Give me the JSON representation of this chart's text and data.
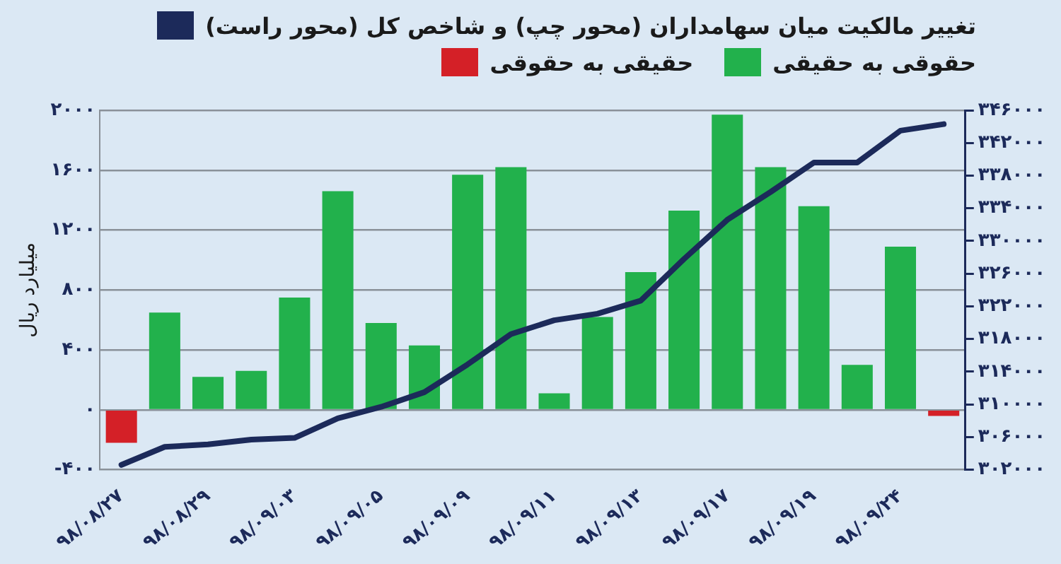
{
  "chart_data": {
    "type": "bar",
    "categories": [
      "۹۸/۰۸/۲۷",
      null,
      "۹۸/۰۸/۲۹",
      null,
      "۹۸/۰۹/۰۳",
      null,
      "۹۸/۰۹/۰۵",
      null,
      "۹۸/۰۹/۰۹",
      null,
      "۹۸/۰۹/۱۱",
      null,
      "۹۸/۰۹/۱۳",
      null,
      "۹۸/۰۹/۱۷",
      null,
      "۹۸/۰۹/۱۹",
      null,
      "۹۸/۰۹/۲۴",
      null
    ],
    "series": [
      {
        "name": "تغییر مالکیت میان سهامداران (محور چپ) و شاخص کل (محور راست)",
        "type": "line",
        "axis": "y2",
        "color": "#1c2a5a",
        "values": [
          302600,
          304800,
          305100,
          305700,
          305900,
          308300,
          309700,
          311500,
          314900,
          318600,
          320300,
          321100,
          322700,
          327800,
          332600,
          336000,
          339600,
          339600,
          343500,
          344300
        ]
      },
      {
        "name": "حقوقی به حقیقی",
        "color": "#22b14c",
        "values": [
          null,
          650,
          220,
          260,
          750,
          1460,
          580,
          430,
          1570,
          1620,
          110,
          620,
          920,
          1330,
          1970,
          1620,
          1360,
          300,
          1090,
          null
        ]
      },
      {
        "name": "حقیقی به حقوقی",
        "color": "#d42027",
        "values": [
          -220,
          null,
          null,
          null,
          null,
          null,
          null,
          null,
          null,
          null,
          null,
          null,
          null,
          null,
          null,
          null,
          null,
          null,
          null,
          -40
        ]
      }
    ],
    "ylabel": "میلیارد ریال",
    "ylim": [
      -400,
      2000
    ],
    "yticks": [
      {
        "value": -400,
        "label": "-۴۰۰"
      },
      {
        "value": 0,
        "label": "۰"
      },
      {
        "value": 400,
        "label": "۴۰۰"
      },
      {
        "value": 800,
        "label": "۸۰۰"
      },
      {
        "value": 1200,
        "label": "۱۲۰۰"
      },
      {
        "value": 1600,
        "label": "۱۶۰۰"
      },
      {
        "value": 2000,
        "label": "۲۰۰۰"
      }
    ],
    "y2lim": [
      302000,
      346000
    ],
    "y2ticks": [
      {
        "value": 302000,
        "label": "۳۰۲۰۰۰"
      },
      {
        "value": 306000,
        "label": "۳۰۶۰۰۰"
      },
      {
        "value": 310000,
        "label": "۳۱۰۰۰۰"
      },
      {
        "value": 314000,
        "label": "۳۱۴۰۰۰"
      },
      {
        "value": 318000,
        "label": "۳۱۸۰۰۰"
      },
      {
        "value": 322000,
        "label": "۳۲۲۰۰۰"
      },
      {
        "value": 326000,
        "label": "۳۲۶۰۰۰"
      },
      {
        "value": 330000,
        "label": "۳۳۰۰۰۰"
      },
      {
        "value": 334000,
        "label": "۳۳۴۰۰۰"
      },
      {
        "value": 338000,
        "label": "۳۳۸۰۰۰"
      },
      {
        "value": 342000,
        "label": "۳۴۲۰۰۰"
      },
      {
        "value": 346000,
        "label": "۳۴۶۰۰۰"
      }
    ],
    "grid": "y",
    "legend": "top right",
    "marker": "none"
  }
}
